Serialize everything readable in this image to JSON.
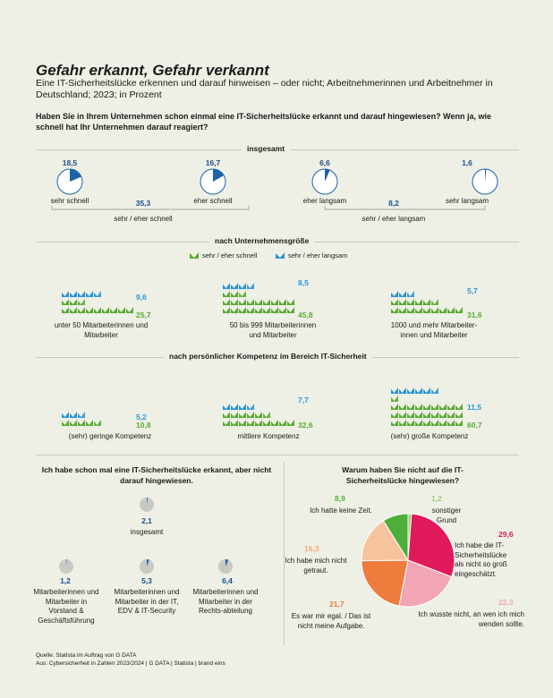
{
  "title": "Gefahr erkannt, Gefahr verkannt",
  "subtitle": "Eine IT-Sicherheitslücke erkennen und darauf hinweisen – oder nicht; Arbeitnehmerinnen und Arbeitnehmer in Deutschland; 2023; in Prozent",
  "question": "Haben Sie in Ihrem Unternehmen schon einmal eine IT-Sicherheitslücke erkannt und darauf hingewiesen? Wenn ja, wie schnell hat Ihr Unternehmen darauf reagiert?",
  "colors": {
    "green": "#5aaa32",
    "blue": "#2b95d6",
    "darkblue": "#1d4f8c",
    "background": "#eef0e6"
  },
  "sections": {
    "overall": "insgesamt",
    "size": "nach Unternehmensgröße",
    "competence": "nach persönlicher Kompetenz im Bereich IT-Sicherheit"
  },
  "legend": {
    "fast": "sehr / eher schnell",
    "slow": "sehr / eher langsam"
  },
  "chart_data": [
    {
      "type": "pie",
      "id": "overall_speed",
      "categories": [
        "sehr schnell",
        "eher schnell",
        "eher langsam",
        "sehr langsam"
      ],
      "values": [
        18.5,
        16.7,
        6.6,
        1.6
      ],
      "values_text": [
        "18,5",
        "16,7",
        "6,6",
        "1,6"
      ],
      "groups": [
        {
          "name": "sehr / eher schnell",
          "value": 35.3,
          "value_text": "35,3"
        },
        {
          "name": "sehr / eher langsam",
          "value": 8.2,
          "value_text": "8,2"
        }
      ]
    },
    {
      "type": "bar",
      "id": "by_company_size",
      "categories": [
        "unter 50 Mitarbeiterinnen und Mitarbeiter",
        "50 bis 999 Mitarbeiterinnen und Mitarbeiter",
        "1000 und mehr Mitarbeiter-innen und Mitarbeiter"
      ],
      "series": [
        {
          "name": "sehr / eher schnell",
          "values": [
            25.7,
            45.8,
            31.6
          ],
          "values_text": [
            "25,7",
            "45,8",
            "31,6"
          ]
        },
        {
          "name": "sehr / eher langsam",
          "values": [
            9.6,
            8.5,
            5.7
          ],
          "values_text": [
            "9,6",
            "8,5",
            "5,7"
          ]
        }
      ]
    },
    {
      "type": "bar",
      "id": "by_competence",
      "categories": [
        "(sehr) geringe Kompetenz",
        "mittlere Kompetenz",
        "(sehr) große Kompetenz"
      ],
      "series": [
        {
          "name": "sehr / eher schnell",
          "values": [
            10.8,
            32.6,
            60.7
          ],
          "values_text": [
            "10,8",
            "32,6",
            "60,7"
          ]
        },
        {
          "name": "sehr / eher langsam",
          "values": [
            5.2,
            7.7,
            11.5
          ],
          "values_text": [
            "5,2",
            "7,7",
            "11,5"
          ]
        }
      ]
    },
    {
      "type": "pie",
      "id": "not_reported",
      "title": "Ich habe schon mal eine IT-Sicherheitslücke erkannt, aber nicht darauf hingewiesen.",
      "categories": [
        "insgesamt",
        "Mitarbeiterinnen und Mitarbeiter in Vorstand & Geschäftsführung",
        "Mitarbeiterinnen und Mitarbeiter in der IT, EDV & IT-Security",
        "Mitarbeiterinnen und Mitarbeiter in der Rechts-abteilung"
      ],
      "values": [
        2.1,
        1.2,
        5.3,
        6.4
      ],
      "values_text": [
        "2,1",
        "1,2",
        "5,3",
        "6,4"
      ]
    },
    {
      "type": "pie",
      "id": "reasons",
      "title": "Warum haben Sie nicht auf die IT-Sicherheitslücke hingewiesen?",
      "categories": [
        "sonstiger Grund",
        "Ich habe die IT-Sicherheitslücke als nicht so groß eingeschätzt.",
        "Ich wusste nicht, an wen ich mich wenden sollte.",
        "Es war mir egal. / Das ist nicht meine Aufgabe.",
        "Ich habe mich nicht getraut.",
        "Ich hatte keine Zeit."
      ],
      "values": [
        1.2,
        29.6,
        22.3,
        21.7,
        16.3,
        8.9
      ],
      "values_text": [
        "1,2",
        "29,6",
        "22,3",
        "21,7",
        "16,3",
        "8,9"
      ],
      "colors": [
        "#9ccc6e",
        "#e0195a",
        "#f2a5b4",
        "#ee7c3c",
        "#f7c39c",
        "#4fae3a"
      ]
    }
  ],
  "source": "Quelle: Statista im Auftrag von G DATA",
  "credit": "Aus: Cybersicherheit in Zahlen 2023/2024 | G DATA | Statista | brand eins"
}
